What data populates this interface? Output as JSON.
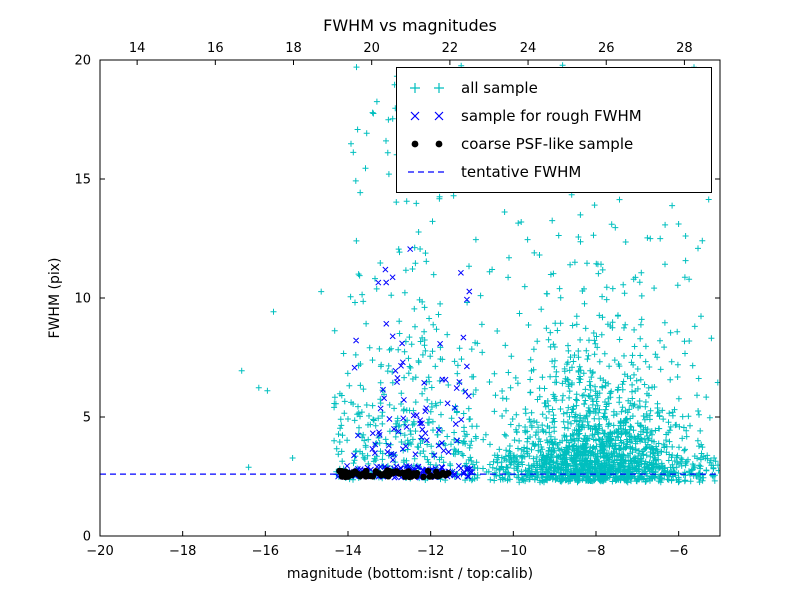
{
  "chart_data": {
    "type": "scatter",
    "title": "FWHM vs magnitudes",
    "xlabel": "magnitude (bottom:isnt / top:calib)",
    "ylabel": "FWHM (pix)",
    "x_axis_bottom": {
      "range": [
        -20,
        -5
      ],
      "ticks": [
        -20,
        -18,
        -16,
        -14,
        -12,
        -10,
        -8,
        -6
      ],
      "tick_labels": [
        "−20",
        "−18",
        "−16",
        "−14",
        "−12",
        "−10",
        "−8",
        "−6"
      ]
    },
    "x_axis_top": {
      "range": [
        13.05,
        28.91
      ],
      "ticks": [
        14,
        16,
        18,
        20,
        22,
        24,
        26,
        28
      ],
      "tick_labels": [
        "14",
        "16",
        "18",
        "20",
        "22",
        "24",
        "26",
        "28"
      ]
    },
    "y_axis": {
      "range": [
        0,
        20
      ],
      "ticks": [
        0,
        5,
        10,
        15,
        20
      ],
      "tick_labels": [
        "0",
        "5",
        "10",
        "15",
        "20"
      ]
    },
    "tentative_line": {
      "label": "tentative FWHM",
      "y": 2.6,
      "color": "#0000ff",
      "style": "dashed"
    },
    "grid": false,
    "legend": {
      "position": "upper right",
      "entries": [
        {
          "label": "all sample",
          "marker": "plus",
          "color": "#00bfbf"
        },
        {
          "label": "sample for rough FWHM",
          "marker": "x",
          "color": "#0000ff"
        },
        {
          "label": "coarse PSF-like sample",
          "marker": "dot",
          "color": "#000000"
        },
        {
          "label": "tentative FWHM",
          "marker": "dashed-line",
          "color": "#0000ff"
        }
      ]
    },
    "render_seed": 42,
    "series": [
      {
        "name": "all sample",
        "marker": "plus",
        "color": "#00bfbf",
        "approx_count": 2300,
        "clusters": [
          {
            "xDist": "uniform",
            "x": [
              -14.35,
              -10.85
            ],
            "yDist": "exp",
            "yBase": 2.35,
            "yScale": 2.6,
            "yMax": 20,
            "count": 380
          },
          {
            "xDist": "gauss",
            "xMean": -8.0,
            "xSd": 1.15,
            "yDist": "exp",
            "yBase": 2.3,
            "yScale": 1.8,
            "yMax": 20,
            "count": 1500
          },
          {
            "xDist": "uniform",
            "x": [
              -13.9,
              -5.0
            ],
            "yDist": "uniform",
            "y": [
              7,
              20
            ],
            "count": 170
          },
          {
            "xDist": "uniform",
            "x": [
              -10.6,
              -5.0
            ],
            "yDist": "uniform",
            "y": [
              2.25,
              3.4
            ],
            "count": 260
          },
          {
            "xDist": "uniform",
            "x": [
              -16.6,
              -14.4
            ],
            "yDist": "uniform",
            "y": [
              2.6,
              10.5
            ],
            "count": 7
          }
        ]
      },
      {
        "name": "sample for rough FWHM",
        "marker": "x",
        "color": "#0000ff",
        "approx_count": 185,
        "clusters": [
          {
            "xDist": "uniform",
            "x": [
              -14.3,
              -11.0
            ],
            "yDist": "uniform",
            "y": [
              2.45,
              2.95
            ],
            "count": 110
          },
          {
            "xDist": "uniform",
            "x": [
              -13.9,
              -11.05
            ],
            "yDist": "exp",
            "yBase": 3.0,
            "yScale": 2.8,
            "yMax": 12.3,
            "count": 75
          }
        ]
      },
      {
        "name": "coarse PSF-like sample",
        "marker": "dot",
        "color": "#000000",
        "approx_count": 70,
        "clusters": [
          {
            "xDist": "uniform",
            "x": [
              -14.25,
              -11.55
            ],
            "yDist": "uniform",
            "y": [
              2.48,
              2.75
            ],
            "count": 70
          }
        ]
      }
    ]
  }
}
